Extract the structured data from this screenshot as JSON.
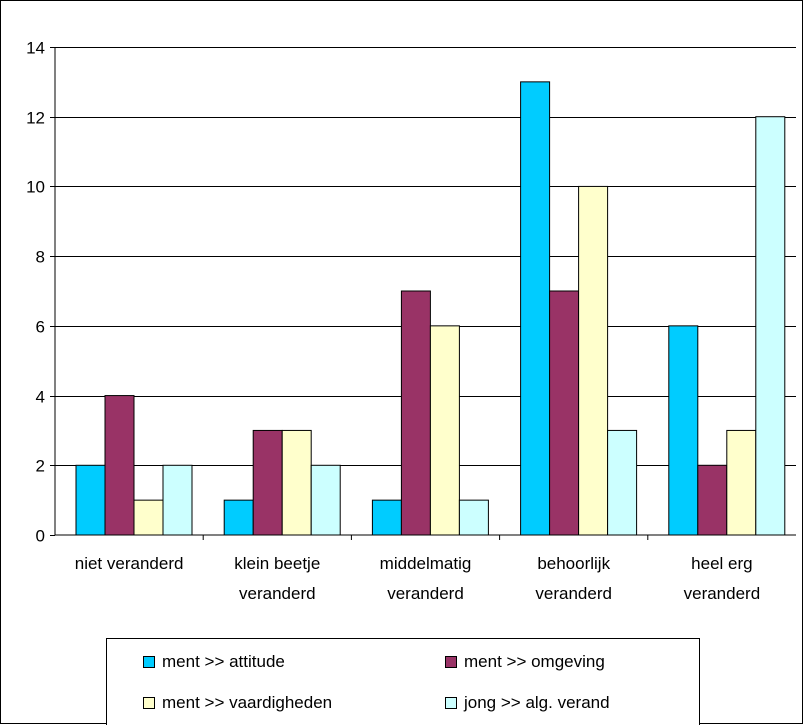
{
  "chart_data": {
    "type": "bar",
    "categories": [
      [
        "niet veranderd"
      ],
      [
        "klein beetje",
        "veranderd"
      ],
      [
        "middelmatig",
        "veranderd"
      ],
      [
        "behoorlijk",
        "veranderd"
      ],
      [
        "heel erg",
        "veranderd"
      ]
    ],
    "series": [
      {
        "name": "ment >> attitude",
        "color": "#00ccff",
        "values": [
          2,
          1,
          1,
          13,
          6
        ]
      },
      {
        "name": "ment >> omgeving",
        "color": "#993366",
        "values": [
          4,
          3,
          7,
          7,
          2
        ]
      },
      {
        "name": "ment >> vaardigheden",
        "color": "#ffffcc",
        "values": [
          1,
          3,
          6,
          10,
          3
        ]
      },
      {
        "name": "jong >> alg. verand",
        "color": "#ccffff",
        "values": [
          2,
          2,
          1,
          3,
          12
        ]
      }
    ],
    "y_ticks": [
      "0",
      "2",
      "4",
      "6",
      "8",
      "10",
      "12",
      "14"
    ],
    "ylim": [
      0,
      14
    ],
    "grid": true,
    "legend_position": "bottom"
  }
}
